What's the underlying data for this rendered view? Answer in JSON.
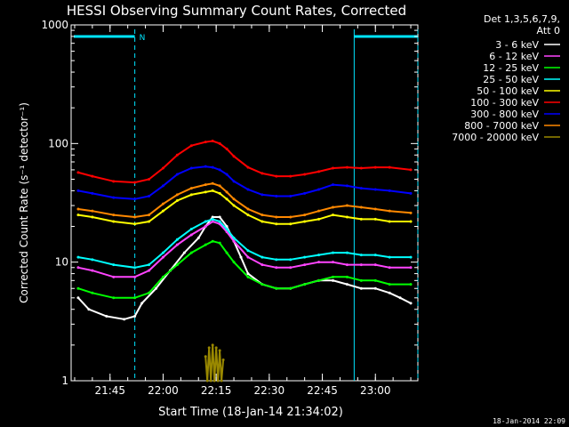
{
  "chart_data": {
    "type": "line",
    "title": "HESSI Observing Summary Count Rates, Corrected",
    "xlabel": "Start Time (18-Jan-14 21:34:02)",
    "ylabel": "Corrected Count Rate (s⁻¹ detector⁻¹)",
    "y_scale": "log",
    "ylim": [
      1,
      1000
    ],
    "xlim_minutes_after_2134": [
      0,
      98
    ],
    "x_tick_labels": [
      "21:45",
      "22:00",
      "22:15",
      "22:30",
      "22:45",
      "23:00"
    ],
    "x_tick_minutes": [
      11,
      26,
      41,
      56,
      71,
      86
    ],
    "y_tick_labels": [
      "1",
      "10",
      "100",
      "1000"
    ],
    "y_tick_values": [
      1,
      10,
      100,
      1000
    ],
    "legend_header": [
      "Det 1,3,5,6,7,9,",
      "Att 0"
    ],
    "legend_position": "right",
    "timestamp": "18-Jan-2014 22:09",
    "night_label": "N",
    "markers": {
      "night": {
        "start_minute": 18,
        "end_minute": 80,
        "label": "N"
      },
      "saa_end_minute": 98
    },
    "series": [
      {
        "name": "3 - 6 keV",
        "color": "#ffffff",
        "x": [
          2,
          5,
          10,
          15,
          18,
          20,
          24,
          28,
          32,
          36,
          38,
          40,
          42,
          44,
          46,
          48,
          50,
          54,
          58,
          62,
          66,
          70,
          74,
          78,
          82,
          86,
          90,
          93,
          96
        ],
        "y": [
          5,
          4,
          3.5,
          3.3,
          3.5,
          4.5,
          6,
          8.5,
          12,
          16,
          20,
          24,
          24,
          20,
          15,
          11,
          8,
          6.5,
          6,
          6,
          6.5,
          7,
          7,
          6.5,
          6,
          6,
          5.5,
          5,
          4.5
        ]
      },
      {
        "name": "6 - 12 keV",
        "color": "#ff44ff",
        "x": [
          2,
          6,
          12,
          18,
          22,
          26,
          30,
          34,
          38,
          40,
          42,
          44,
          46,
          50,
          54,
          58,
          62,
          66,
          70,
          74,
          78,
          82,
          86,
          90,
          96
        ],
        "y": [
          9,
          8.5,
          7.5,
          7.5,
          8.5,
          11,
          14,
          17,
          20,
          22,
          21,
          18,
          15,
          11,
          9.5,
          9,
          9,
          9.5,
          10,
          10,
          9.5,
          9.5,
          9.5,
          9,
          9
        ]
      },
      {
        "name": "12 - 25 keV",
        "color": "#00ff00",
        "x": [
          2,
          6,
          12,
          18,
          22,
          26,
          30,
          34,
          38,
          40,
          42,
          44,
          46,
          50,
          54,
          58,
          62,
          66,
          70,
          74,
          78,
          82,
          86,
          90,
          96
        ],
        "y": [
          6,
          5.5,
          5,
          5,
          5.5,
          7.5,
          9.5,
          12,
          14,
          15,
          14.5,
          12,
          10,
          7.5,
          6.5,
          6,
          6,
          6.5,
          7,
          7.5,
          7.5,
          7,
          7,
          6.5,
          6.5
        ]
      },
      {
        "name": "25 - 50 keV",
        "color": "#00ffff",
        "x": [
          2,
          6,
          12,
          18,
          22,
          26,
          30,
          34,
          38,
          40,
          42,
          44,
          46,
          50,
          54,
          58,
          62,
          66,
          70,
          74,
          78,
          82,
          86,
          90,
          96
        ],
        "y": [
          11,
          10.5,
          9.5,
          9,
          9.5,
          12,
          15.5,
          19,
          22,
          23,
          22,
          19,
          16,
          12.5,
          11,
          10.5,
          10.5,
          11,
          11.5,
          12,
          12,
          11.5,
          11.5,
          11,
          11
        ]
      },
      {
        "name": "50 - 100 keV",
        "color": "#ffff00",
        "x": [
          2,
          6,
          12,
          18,
          22,
          26,
          30,
          34,
          38,
          40,
          42,
          44,
          46,
          50,
          54,
          58,
          62,
          66,
          70,
          74,
          78,
          82,
          86,
          90,
          96
        ],
        "y": [
          25,
          24,
          22,
          21,
          22,
          27,
          33,
          37,
          39,
          40,
          38,
          34,
          30,
          25,
          22,
          21,
          21,
          22,
          23,
          25,
          24,
          23,
          23,
          22,
          22
        ]
      },
      {
        "name": "100 - 300 keV",
        "color": "#ff0000",
        "x": [
          2,
          6,
          12,
          18,
          22,
          26,
          30,
          34,
          38,
          40,
          42,
          44,
          46,
          50,
          54,
          58,
          62,
          66,
          70,
          74,
          78,
          82,
          86,
          90,
          96
        ],
        "y": [
          57,
          53,
          48,
          47,
          50,
          62,
          80,
          96,
          103,
          105,
          100,
          90,
          78,
          63,
          56,
          53,
          53,
          55,
          58,
          62,
          63,
          62,
          63,
          63,
          60
        ]
      },
      {
        "name": "300 - 800 keV",
        "color": "#0000ff",
        "x": [
          2,
          6,
          12,
          18,
          22,
          26,
          30,
          34,
          38,
          40,
          42,
          44,
          46,
          50,
          54,
          58,
          62,
          66,
          70,
          74,
          78,
          82,
          86,
          90,
          96
        ],
        "y": [
          40,
          38,
          35,
          34,
          36,
          44,
          55,
          62,
          64,
          63,
          60,
          55,
          48,
          41,
          37,
          36,
          36,
          38,
          41,
          45,
          44,
          42,
          41,
          40,
          38
        ]
      },
      {
        "name": "800 - 7000 keV",
        "color": "#ff8800",
        "x": [
          2,
          6,
          12,
          18,
          22,
          26,
          30,
          34,
          38,
          40,
          42,
          44,
          46,
          50,
          54,
          58,
          62,
          66,
          70,
          74,
          78,
          82,
          86,
          90,
          96
        ],
        "y": [
          28,
          27,
          25,
          24,
          25,
          31,
          37,
          42,
          45,
          46,
          44,
          39,
          34,
          28,
          25,
          24,
          24,
          25,
          27,
          29,
          30,
          29,
          28,
          27,
          26
        ]
      },
      {
        "name": "7000 - 20000 keV",
        "color": "#998800",
        "x": [
          38,
          38.5,
          39,
          39.5,
          40,
          40.5,
          41,
          41.5,
          42,
          42.5,
          43
        ],
        "y": [
          1.6,
          1,
          1.9,
          1,
          2,
          1,
          1.9,
          1,
          1.8,
          1,
          1.5
        ]
      }
    ]
  }
}
